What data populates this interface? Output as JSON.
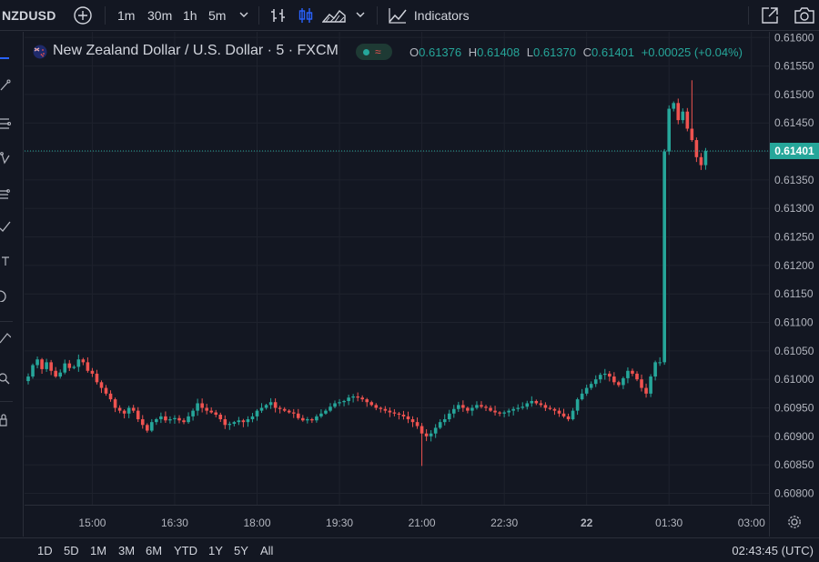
{
  "topbar": {
    "symbol": "NZDUSD",
    "timeframes": [
      "1m",
      "30m",
      "1h",
      "5m"
    ],
    "active_timeframe": "5m",
    "indicators_label": "Indicators"
  },
  "legend": {
    "title": "New Zealand Dollar / U.S. Dollar · 5 · FXCM",
    "wave_glyph": "≈",
    "o_key": "O",
    "o_val": "0.61376",
    "h_key": "H",
    "h_val": "0.61408",
    "l_key": "L",
    "l_val": "0.61370",
    "c_key": "C",
    "c_val": "0.61401",
    "change": "+0.00025 (+0.04%)"
  },
  "bottombar": {
    "ranges": [
      "1D",
      "5D",
      "1M",
      "3M",
      "6M",
      "YTD",
      "1Y",
      "5Y",
      "All"
    ],
    "clock": "02:43:45 (UTC)"
  },
  "colors": {
    "up": "#26a69a",
    "down": "#ef5350",
    "background": "#131722",
    "grid": "#1e222d",
    "accent": "#2962ff"
  },
  "chart_data": {
    "type": "candlestick",
    "title": "New Zealand Dollar / U.S. Dollar · 5 · FXCM",
    "ylim": [
      0.6078,
      0.6161
    ],
    "y_ticks": [
      "0.61600",
      "0.61550",
      "0.61500",
      "0.61450",
      "0.61400",
      "0.61350",
      "0.61300",
      "0.61250",
      "0.61200",
      "0.61150",
      "0.61100",
      "0.61050",
      "0.61000",
      "0.60950",
      "0.60900",
      "0.60850",
      "0.60800"
    ],
    "x_ticks": [
      {
        "label": "15:00",
        "index": 14
      },
      {
        "label": "16:30",
        "index": 32
      },
      {
        "label": "18:00",
        "index": 50
      },
      {
        "label": "19:30",
        "index": 68
      },
      {
        "label": "21:00",
        "index": 86
      },
      {
        "label": "22:30",
        "index": 104
      },
      {
        "label": "22",
        "index": 122
      },
      {
        "label": "01:30",
        "index": 140
      },
      {
        "label": "03:00",
        "index": 158
      }
    ],
    "current_price": "0.61401",
    "current_value": 0.61401,
    "closes": [
      0.61005,
      0.61025,
      0.61035,
      0.61018,
      0.6103,
      0.61015,
      0.61005,
      0.61012,
      0.61028,
      0.6102,
      0.61022,
      0.61035,
      0.6103,
      0.61015,
      0.6101,
      0.60995,
      0.60985,
      0.60975,
      0.60965,
      0.6095,
      0.60945,
      0.6094,
      0.6095,
      0.60945,
      0.6093,
      0.6092,
      0.6091,
      0.60925,
      0.6093,
      0.60935,
      0.60928,
      0.6093,
      0.60932,
      0.60928,
      0.60925,
      0.60935,
      0.60945,
      0.60958,
      0.6095,
      0.60945,
      0.60942,
      0.60938,
      0.6093,
      0.6092,
      0.60922,
      0.60925,
      0.60928,
      0.60925,
      0.6093,
      0.60935,
      0.60945,
      0.6095,
      0.60955,
      0.6096,
      0.6095,
      0.60948,
      0.60945,
      0.60942,
      0.6094,
      0.60932,
      0.60928,
      0.6093,
      0.60928,
      0.60935,
      0.6094,
      0.60945,
      0.60952,
      0.60958,
      0.6096,
      0.60962,
      0.60968,
      0.6097,
      0.60968,
      0.60965,
      0.6096,
      0.60955,
      0.6095,
      0.60948,
      0.60945,
      0.60942,
      0.6094,
      0.60938,
      0.60935,
      0.6093,
      0.60925,
      0.60918,
      0.60905,
      0.609,
      0.60905,
      0.60915,
      0.60925,
      0.6093,
      0.6094,
      0.60948,
      0.60955,
      0.6095,
      0.60945,
      0.6095,
      0.60955,
      0.60952,
      0.6095,
      0.60945,
      0.60942,
      0.6094,
      0.60942,
      0.60945,
      0.60948,
      0.6095,
      0.60952,
      0.60958,
      0.60962,
      0.60958,
      0.60955,
      0.6095,
      0.60948,
      0.60945,
      0.6094,
      0.60935,
      0.6093,
      0.60945,
      0.60965,
      0.60975,
      0.60985,
      0.60992,
      0.61,
      0.61008,
      0.6101,
      0.61005,
      0.60995,
      0.6099,
      0.61002,
      0.61015,
      0.6101,
      0.61,
      0.60985,
      0.60975,
      0.61005,
      0.6103,
      0.6103,
      0.614,
      0.61475,
      0.61485,
      0.61455,
      0.6147,
      0.6144,
      0.6142,
      0.6139,
      0.61376,
      0.61401
    ]
  }
}
